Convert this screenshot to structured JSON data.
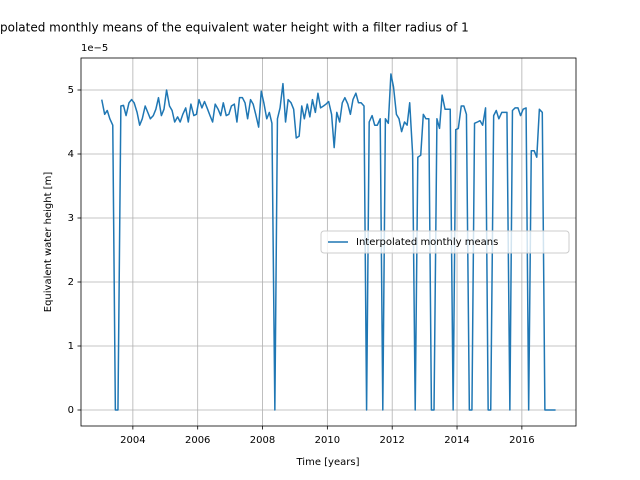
{
  "chart_data": {
    "type": "line",
    "title": "polated monthly means of the equivalent water height with a filter radius of 1",
    "x_label": "Time [years]",
    "y_label": "Equivalent water height [m]",
    "y_offset_label": "1e−5",
    "xlim": [
      2002.4,
      2017.67
    ],
    "ylim": [
      -0.25,
      5.5
    ],
    "xticks": [
      2004,
      2006,
      2008,
      2010,
      2012,
      2014,
      2016
    ],
    "yticks": [
      0,
      1,
      2,
      3,
      4,
      5
    ],
    "grid": true,
    "legend_loc": "center right",
    "series": [
      {
        "name": "Interpolated monthly means",
        "color": "#1f77b4",
        "x": [
          2003.04,
          2003.13,
          2003.21,
          2003.29,
          2003.38,
          2003.46,
          2003.54,
          2003.63,
          2003.71,
          2003.79,
          2003.88,
          2003.96,
          2004.04,
          2004.13,
          2004.21,
          2004.29,
          2004.38,
          2004.46,
          2004.54,
          2004.63,
          2004.71,
          2004.79,
          2004.88,
          2004.96,
          2005.04,
          2005.13,
          2005.21,
          2005.29,
          2005.38,
          2005.46,
          2005.54,
          2005.63,
          2005.71,
          2005.79,
          2005.88,
          2005.96,
          2006.04,
          2006.13,
          2006.21,
          2006.29,
          2006.38,
          2006.46,
          2006.54,
          2006.63,
          2006.71,
          2006.79,
          2006.88,
          2006.96,
          2007.04,
          2007.13,
          2007.21,
          2007.29,
          2007.38,
          2007.46,
          2007.54,
          2007.63,
          2007.71,
          2007.79,
          2007.88,
          2007.96,
          2008.04,
          2008.13,
          2008.21,
          2008.29,
          2008.38,
          2008.46,
          2008.54,
          2008.63,
          2008.71,
          2008.79,
          2008.88,
          2008.96,
          2009.04,
          2009.13,
          2009.21,
          2009.29,
          2009.38,
          2009.46,
          2009.54,
          2009.63,
          2009.71,
          2009.79,
          2009.88,
          2009.96,
          2010.04,
          2010.13,
          2010.21,
          2010.29,
          2010.38,
          2010.46,
          2010.54,
          2010.63,
          2010.71,
          2010.79,
          2010.88,
          2010.96,
          2011.04,
          2011.13,
          2011.21,
          2011.29,
          2011.38,
          2011.46,
          2011.54,
          2011.63,
          2011.71,
          2011.79,
          2011.88,
          2011.96,
          2012.04,
          2012.13,
          2012.21,
          2012.29,
          2012.38,
          2012.46,
          2012.54,
          2012.63,
          2012.71,
          2012.79,
          2012.88,
          2012.96,
          2013.04,
          2013.13,
          2013.21,
          2013.29,
          2013.38,
          2013.46,
          2013.54,
          2013.63,
          2013.71,
          2013.79,
          2013.88,
          2013.96,
          2014.04,
          2014.13,
          2014.21,
          2014.29,
          2014.38,
          2014.46,
          2014.54,
          2014.63,
          2014.71,
          2014.79,
          2014.88,
          2014.96,
          2015.04,
          2015.13,
          2015.21,
          2015.29,
          2015.38,
          2015.46,
          2015.54,
          2015.63,
          2015.71,
          2015.79,
          2015.88,
          2015.96,
          2016.04,
          2016.13,
          2016.21,
          2016.29,
          2016.38,
          2016.46,
          2016.54,
          2016.63,
          2016.71,
          2016.79,
          2016.88,
          2016.96,
          2017.04
        ],
        "values": [
          4.85,
          4.62,
          4.68,
          4.55,
          4.45,
          0,
          0,
          4.75,
          4.76,
          4.6,
          4.8,
          4.85,
          4.8,
          4.65,
          4.45,
          4.55,
          4.75,
          4.65,
          4.55,
          4.6,
          4.7,
          4.88,
          4.6,
          4.7,
          5.0,
          4.75,
          4.68,
          4.5,
          4.58,
          4.5,
          4.62,
          4.72,
          4.5,
          4.78,
          4.6,
          4.62,
          4.85,
          4.72,
          4.82,
          4.72,
          4.6,
          4.5,
          4.78,
          4.7,
          4.6,
          4.8,
          4.6,
          4.62,
          4.75,
          4.78,
          4.5,
          4.88,
          4.88,
          4.8,
          4.55,
          4.85,
          4.78,
          4.62,
          4.42,
          4.98,
          4.8,
          4.55,
          4.65,
          4.48,
          0,
          4.55,
          4.72,
          5.1,
          4.5,
          4.85,
          4.8,
          4.7,
          4.25,
          4.28,
          4.75,
          4.55,
          4.78,
          4.58,
          4.85,
          4.65,
          4.95,
          4.72,
          4.75,
          4.78,
          4.82,
          4.62,
          4.1,
          4.65,
          4.5,
          4.8,
          4.88,
          4.78,
          4.62,
          4.85,
          4.95,
          4.8,
          4.8,
          4.75,
          0,
          4.5,
          4.6,
          4.45,
          4.45,
          4.55,
          0,
          4.55,
          4.48,
          5.25,
          5.05,
          4.62,
          4.55,
          4.35,
          4.5,
          4.45,
          4.8,
          4.0,
          0,
          3.95,
          3.98,
          4.62,
          4.55,
          4.55,
          0,
          0,
          4.55,
          4.4,
          4.92,
          4.7,
          4.7,
          4.7,
          0,
          4.38,
          4.4,
          4.75,
          4.75,
          4.62,
          0,
          0,
          4.48,
          4.5,
          4.52,
          4.45,
          4.72,
          0,
          0,
          4.6,
          4.68,
          4.55,
          4.65,
          4.65,
          4.65,
          0,
          4.68,
          4.72,
          4.72,
          4.6,
          4.7,
          4.72,
          0,
          4.05,
          4.05,
          3.95,
          4.7,
          4.65,
          0,
          0,
          0,
          0,
          0
        ]
      }
    ]
  }
}
